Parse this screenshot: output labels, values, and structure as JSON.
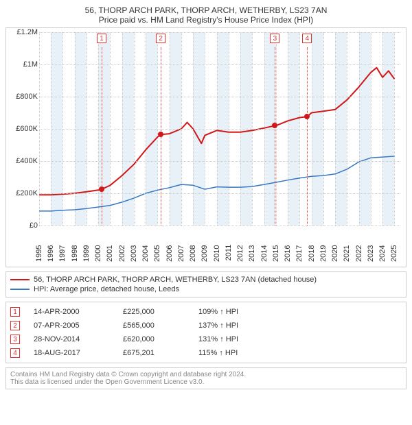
{
  "title": {
    "line1": "56, THORP ARCH PARK, THORP ARCH, WETHERBY, LS23 7AN",
    "line2": "Price paid vs. HM Land Registry's House Price Index (HPI)"
  },
  "chart": {
    "type": "line",
    "background_color": "#ffffff",
    "grid_color": "#cccccc",
    "band_color": "#e8f0f8",
    "x": {
      "min": 1995,
      "max": 2025.5,
      "ticks": [
        1995,
        1996,
        1997,
        1998,
        1999,
        2000,
        2001,
        2002,
        2003,
        2004,
        2005,
        2006,
        2007,
        2008,
        2009,
        2010,
        2011,
        2012,
        2013,
        2014,
        2015,
        2016,
        2017,
        2018,
        2019,
        2020,
        2021,
        2022,
        2023,
        2024,
        2025
      ],
      "label_fontsize": 11
    },
    "y": {
      "min": 0,
      "max": 1200000,
      "ticks": [
        {
          "v": 0,
          "label": "£0"
        },
        {
          "v": 200000,
          "label": "£200K"
        },
        {
          "v": 400000,
          "label": "£400K"
        },
        {
          "v": 600000,
          "label": "£600K"
        },
        {
          "v": 800000,
          "label": "£800K"
        },
        {
          "v": 1000000,
          "label": "£1M"
        },
        {
          "v": 1200000,
          "label": "£1.2M"
        }
      ],
      "label_fontsize": 11
    },
    "series": [
      {
        "id": "property",
        "label": "56, THORP ARCH PARK, THORP ARCH, WETHERBY, LS23 7AN (detached house)",
        "color": "#d01818",
        "line_width": 2,
        "points": [
          [
            1995,
            190000
          ],
          [
            1996,
            190000
          ],
          [
            1997,
            195000
          ],
          [
            1998,
            200000
          ],
          [
            1999,
            210000
          ],
          [
            2000,
            220000
          ],
          [
            2000.28,
            225000
          ],
          [
            2001,
            250000
          ],
          [
            2002,
            310000
          ],
          [
            2003,
            380000
          ],
          [
            2004,
            470000
          ],
          [
            2005,
            550000
          ],
          [
            2005.27,
            565000
          ],
          [
            2006,
            570000
          ],
          [
            2007,
            600000
          ],
          [
            2007.5,
            640000
          ],
          [
            2008,
            600000
          ],
          [
            2008.7,
            510000
          ],
          [
            2009,
            560000
          ],
          [
            2010,
            590000
          ],
          [
            2011,
            580000
          ],
          [
            2012,
            580000
          ],
          [
            2013,
            590000
          ],
          [
            2014,
            605000
          ],
          [
            2014.91,
            620000
          ],
          [
            2015,
            620000
          ],
          [
            2016,
            650000
          ],
          [
            2017,
            670000
          ],
          [
            2017.63,
            675201
          ],
          [
            2018,
            700000
          ],
          [
            2019,
            710000
          ],
          [
            2020,
            720000
          ],
          [
            2021,
            780000
          ],
          [
            2022,
            860000
          ],
          [
            2023,
            950000
          ],
          [
            2023.5,
            980000
          ],
          [
            2024,
            920000
          ],
          [
            2024.5,
            960000
          ],
          [
            2025,
            910000
          ]
        ]
      },
      {
        "id": "hpi",
        "label": "HPI: Average price, detached house, Leeds",
        "color": "#3878c0",
        "line_width": 1.5,
        "points": [
          [
            1995,
            90000
          ],
          [
            1996,
            90000
          ],
          [
            1997,
            95000
          ],
          [
            1998,
            98000
          ],
          [
            1999,
            105000
          ],
          [
            2000,
            115000
          ],
          [
            2001,
            125000
          ],
          [
            2002,
            145000
          ],
          [
            2003,
            170000
          ],
          [
            2004,
            200000
          ],
          [
            2005,
            220000
          ],
          [
            2006,
            235000
          ],
          [
            2007,
            255000
          ],
          [
            2008,
            250000
          ],
          [
            2009,
            225000
          ],
          [
            2010,
            240000
          ],
          [
            2011,
            238000
          ],
          [
            2012,
            238000
          ],
          [
            2013,
            242000
          ],
          [
            2014,
            255000
          ],
          [
            2015,
            268000
          ],
          [
            2016,
            282000
          ],
          [
            2017,
            295000
          ],
          [
            2018,
            305000
          ],
          [
            2019,
            310000
          ],
          [
            2020,
            320000
          ],
          [
            2021,
            350000
          ],
          [
            2022,
            395000
          ],
          [
            2023,
            420000
          ],
          [
            2024,
            425000
          ],
          [
            2025,
            430000
          ]
        ]
      }
    ],
    "bands_alternate_start": 1995,
    "markers": [
      {
        "idx": "1",
        "x": 2000.28,
        "y": 225000,
        "color": "#d01818"
      },
      {
        "idx": "2",
        "x": 2005.27,
        "y": 565000,
        "color": "#d01818"
      },
      {
        "idx": "3",
        "x": 2014.91,
        "y": 620000,
        "color": "#d01818"
      },
      {
        "idx": "4",
        "x": 2017.63,
        "y": 675201,
        "color": "#d01818"
      }
    ],
    "marker_line_color": "#e03030",
    "marker_box_border": "#e03030"
  },
  "legend": {
    "items": [
      {
        "color": "#d01818",
        "label": "56, THORP ARCH PARK, THORP ARCH, WETHERBY, LS23 7AN (detached house)"
      },
      {
        "color": "#3878c0",
        "label": "HPI: Average price, detached house, Leeds"
      }
    ]
  },
  "transactions": [
    {
      "idx": "1",
      "date": "14-APR-2000",
      "price": "£225,000",
      "hpi": "109% ↑ HPI"
    },
    {
      "idx": "2",
      "date": "07-APR-2005",
      "price": "£565,000",
      "hpi": "137% ↑ HPI"
    },
    {
      "idx": "3",
      "date": "28-NOV-2014",
      "price": "£620,000",
      "hpi": "131% ↑ HPI"
    },
    {
      "idx": "4",
      "date": "18-AUG-2017",
      "price": "£675,201",
      "hpi": "115% ↑ HPI"
    }
  ],
  "footer": {
    "line1": "Contains HM Land Registry data © Crown copyright and database right 2024.",
    "line2": "This data is licensed under the Open Government Licence v3.0."
  }
}
